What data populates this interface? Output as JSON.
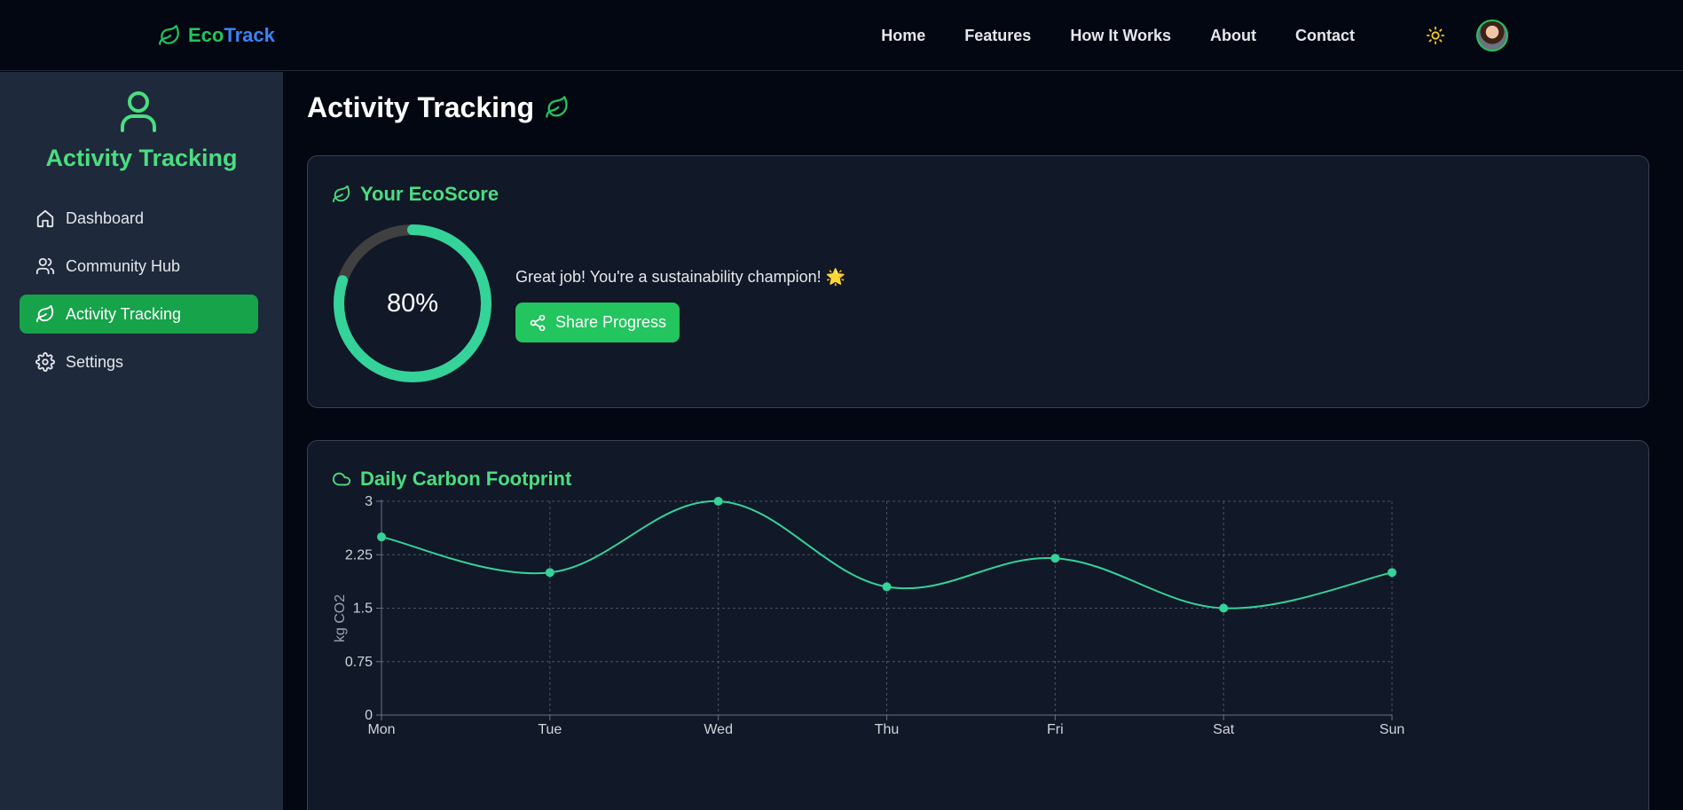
{
  "brand": {
    "name_part1": "Eco",
    "name_part2": "Track"
  },
  "nav": {
    "items": [
      "Home",
      "Features",
      "How It Works",
      "About",
      "Contact"
    ]
  },
  "icons": {
    "brand": "leaf-icon",
    "theme": "sun-icon",
    "avatar": "user-avatar"
  },
  "sidebar": {
    "title": "Activity Tracking",
    "items": [
      {
        "label": "Dashboard",
        "icon": "home-icon",
        "active": false
      },
      {
        "label": "Community Hub",
        "icon": "users-icon",
        "active": false
      },
      {
        "label": "Activity Tracking",
        "icon": "leaf-icon",
        "active": true
      },
      {
        "label": "Settings",
        "icon": "gear-icon",
        "active": false
      }
    ]
  },
  "main": {
    "title": "Activity Tracking",
    "ecoscore": {
      "title": "Your EcoScore",
      "value_text": "80%",
      "fraction": 0.8,
      "message": "Great job! You're a sustainability champion! 🌟",
      "share_label": "Share Progress"
    },
    "footprint": {
      "title": "Daily Carbon Footprint"
    }
  },
  "colors": {
    "accent": "#22c55e",
    "accent_light": "#4ade80",
    "chart_line": "#34d399",
    "gauge_track": "#404040",
    "sidebar_bg": "#1e293b",
    "card_bg": "#111827",
    "page_bg": "#030712"
  },
  "chart_data": {
    "type": "line",
    "title": "",
    "xlabel": "",
    "ylabel": "kg CO2",
    "categories": [
      "Mon",
      "Tue",
      "Wed",
      "Thu",
      "Fri",
      "Sat",
      "Sun"
    ],
    "series": [
      {
        "values": [
          2.5,
          2.0,
          3.0,
          1.8,
          2.2,
          1.5,
          2.0
        ]
      }
    ],
    "ylim": [
      0,
      3
    ],
    "yticks": [
      "0",
      "0.75",
      "1.5",
      "2.25",
      "3"
    ],
    "grid": true,
    "curve": "smooth"
  }
}
